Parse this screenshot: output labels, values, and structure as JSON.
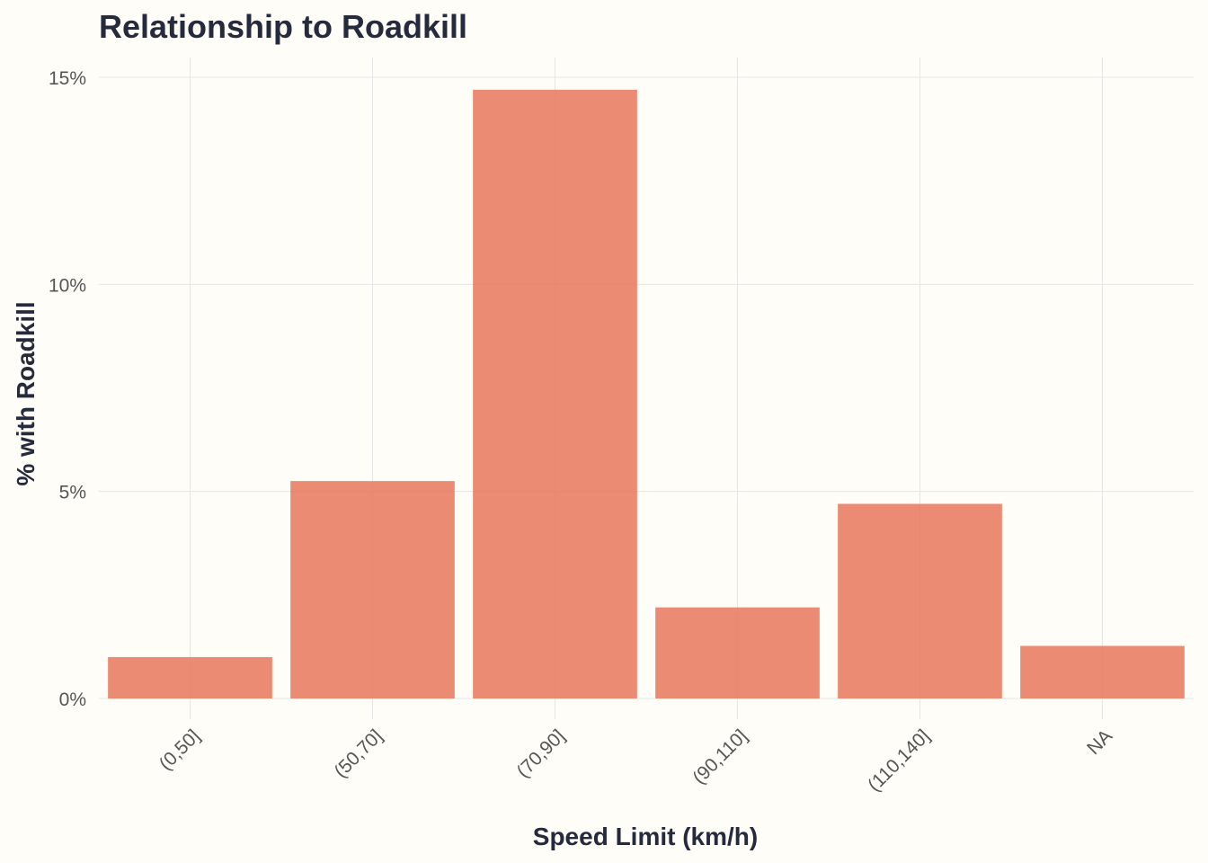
{
  "chart_data": {
    "type": "bar",
    "title": "Relationship to Roadkill",
    "xlabel": "Speed Limit (km/h)",
    "ylabel": "% with Roadkill",
    "categories": [
      "(0,50]",
      "(50,70]",
      "(70,90]",
      "(90,110]",
      "(110,140]",
      "NA"
    ],
    "values": [
      1.0,
      5.25,
      14.7,
      2.2,
      4.7,
      1.27
    ],
    "ylim": [
      0,
      15.4
    ],
    "yticks": [
      0,
      5,
      10,
      15
    ],
    "ytick_labels": [
      "0%",
      "5%",
      "10%",
      "15%"
    ],
    "grid": true,
    "bar_color": "#e8775c"
  }
}
